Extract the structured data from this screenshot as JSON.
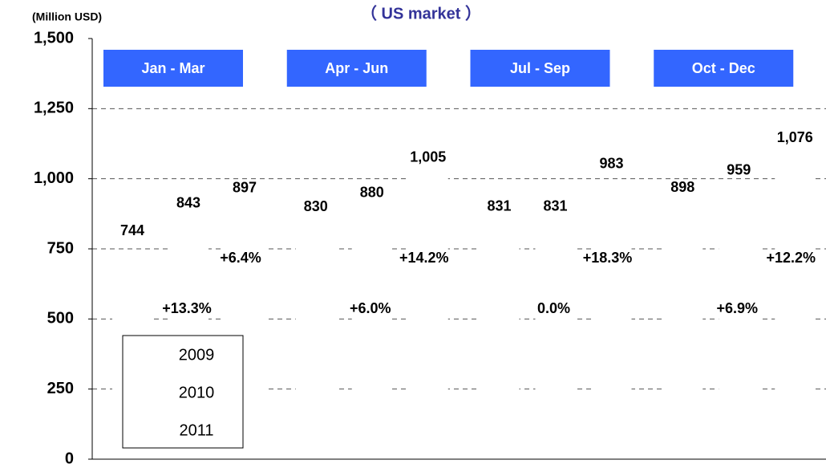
{
  "chart_data": {
    "type": "bar",
    "title": "（ US market ）",
    "y_axis_label": "(Million USD)",
    "categories": [
      "Jan - Mar",
      "Apr - Jun",
      "Jul - Sep",
      "Oct - Dec"
    ],
    "series": [
      {
        "name": "2009",
        "color": "#ffffff",
        "values": [
          744,
          830,
          831,
          898
        ],
        "value_labels": [
          "744",
          "830",
          "831",
          "898"
        ]
      },
      {
        "name": "2010",
        "color": "#ffffff",
        "values": [
          843,
          880,
          831,
          959
        ],
        "value_labels": [
          "843",
          "880",
          "831",
          "959"
        ]
      },
      {
        "name": "2011",
        "color": "#ffffff",
        "values": [
          897,
          1005,
          983,
          1076
        ],
        "value_labels": [
          "897",
          "1,005",
          "983",
          "1,076"
        ]
      }
    ],
    "annotations": [
      [
        "+13.3%",
        "+6.4%"
      ],
      [
        "+6.0%",
        "+14.2%"
      ],
      [
        "0.0%",
        "+18.3%"
      ],
      [
        "+6.9%",
        "+12.2%"
      ]
    ],
    "ylim": [
      0,
      1500
    ],
    "yticks": [
      0,
      250,
      500,
      750,
      {
        "value": 1000,
        "label": "1,000"
      },
      {
        "value": 1250,
        "label": "1,250"
      },
      {
        "value": 1500,
        "label": "1,500"
      }
    ],
    "grid": true
  }
}
